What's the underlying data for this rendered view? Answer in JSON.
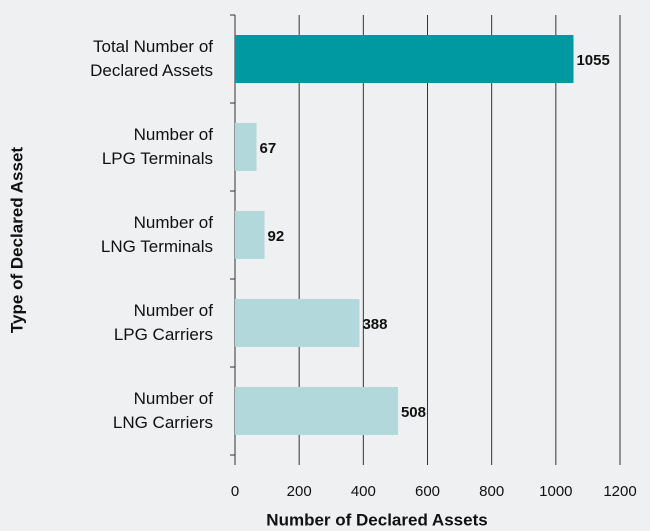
{
  "chart_data": {
    "type": "barh",
    "categories": [
      "Total Number of\nDeclared Assets",
      "Number of\nLPG Terminals",
      "Number of\nLNG Terminals",
      "Number of\nLPG Carriers",
      "Number of\nLNG Carriers"
    ],
    "values": [
      1055,
      67,
      92,
      388,
      508
    ],
    "colors": [
      "#0099a1",
      "#b3d8dc",
      "#b3d8dc",
      "#b3d8dc",
      "#b3d8dc"
    ],
    "xlabel": "Number of Declared Assets",
    "ylabel": "Type of Declared Asset",
    "xlim": [
      0,
      1200
    ],
    "xticks": [
      0,
      200,
      400,
      600,
      800,
      1000,
      1200
    ],
    "grid": true
  }
}
